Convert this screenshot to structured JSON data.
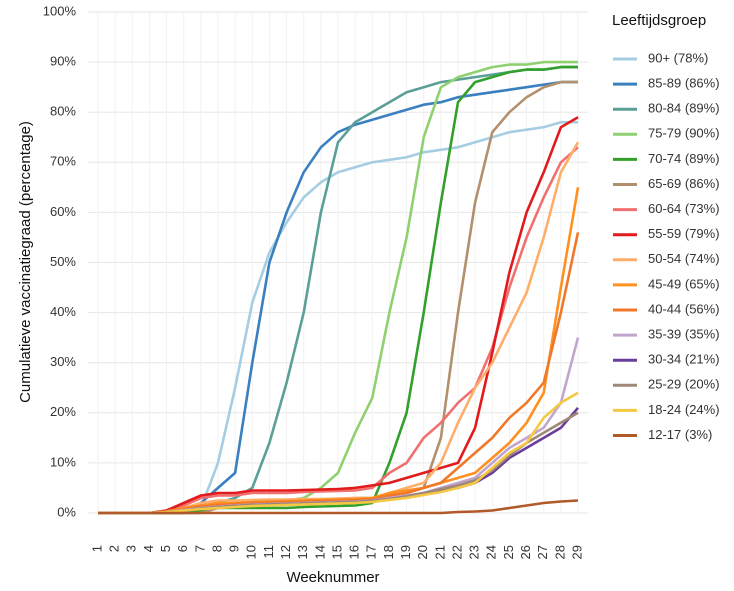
{
  "chart_data": {
    "type": "line",
    "x_label": "Weeknummer",
    "y_label": "Cumulatieve vaccinatiegraad (percentage)",
    "legend_title": "Leeftijdsgroep",
    "legend": "right",
    "grid": true,
    "categories": [
      "1",
      "2",
      "3",
      "4",
      "5",
      "6",
      "7",
      "8",
      "9",
      "10",
      "11",
      "12",
      "13",
      "14",
      "15",
      "16",
      "17",
      "18",
      "19",
      "20",
      "21",
      "22",
      "23",
      "24",
      "25",
      "26",
      "27",
      "28",
      "29"
    ],
    "ylim": [
      0,
      100
    ],
    "yticks": [
      {
        "value": 0,
        "label": "0%"
      },
      {
        "value": 10,
        "label": "10%"
      },
      {
        "value": 20,
        "label": "20%"
      },
      {
        "value": 30,
        "label": "30%"
      },
      {
        "value": 40,
        "label": "40%"
      },
      {
        "value": 50,
        "label": "50%"
      },
      {
        "value": 60,
        "label": "60%"
      },
      {
        "value": 70,
        "label": "70%"
      },
      {
        "value": 80,
        "label": "80%"
      },
      {
        "value": 90,
        "label": "90%"
      },
      {
        "value": 100,
        "label": "100%"
      }
    ],
    "series": [
      {
        "name": "90+ (78%)",
        "color": "#a6cee3",
        "values": [
          0,
          0,
          0,
          0,
          0,
          0,
          1,
          10,
          25,
          42,
          52,
          58,
          63,
          66,
          68,
          69,
          70,
          70.5,
          71,
          72,
          72.5,
          73,
          74,
          75,
          76,
          76.5,
          77,
          78,
          78
        ]
      },
      {
        "name": "85-89 (86%)",
        "color": "#3a7fbf",
        "values": [
          0,
          0,
          0,
          0,
          0,
          0,
          2,
          5,
          8,
          30,
          50,
          60,
          68,
          73,
          76,
          77.5,
          78.5,
          79.5,
          80.5,
          81.5,
          82,
          83,
          83.5,
          84,
          84.5,
          85,
          85.5,
          86,
          86
        ]
      },
      {
        "name": "80-84 (89%)",
        "color": "#5aa096",
        "values": [
          0,
          0,
          0,
          0,
          0,
          0,
          1,
          2,
          3,
          5,
          14,
          26,
          40,
          60,
          74,
          78,
          80,
          82,
          84,
          85,
          86,
          86.5,
          87,
          87.5,
          88,
          88.5,
          88.5,
          89,
          89
        ]
      },
      {
        "name": "75-79 (90%)",
        "color": "#8fd170",
        "values": [
          0,
          0,
          0,
          0,
          0,
          0,
          0.5,
          1,
          1.5,
          2,
          2.5,
          2.5,
          3,
          5,
          8,
          16,
          23,
          40,
          55,
          75,
          85,
          87,
          88,
          89,
          89.5,
          89.5,
          90,
          90,
          90
        ]
      },
      {
        "name": "70-74 (89%)",
        "color": "#33a02c",
        "values": [
          0,
          0,
          0,
          0,
          0,
          0,
          0.5,
          1,
          1,
          1,
          1,
          1,
          1.2,
          1.3,
          1.4,
          1.5,
          2,
          10,
          20,
          40,
          62,
          82,
          86,
          87,
          88,
          88.5,
          88.5,
          89,
          89
        ]
      },
      {
        "name": "65-69 (86%)",
        "color": "#b3906d",
        "values": [
          0,
          0,
          0,
          0,
          0,
          0,
          0,
          1,
          1.5,
          2,
          2,
          2.2,
          2.4,
          2.6,
          2.8,
          3,
          3,
          3.5,
          4,
          5,
          15,
          40,
          62,
          76,
          80,
          83,
          85,
          86,
          86
        ]
      },
      {
        "name": "60-64 (73%)",
        "color": "#f07070",
        "values": [
          0,
          0,
          0,
          0,
          0.5,
          1.5,
          3,
          3.5,
          3.5,
          4,
          4,
          4,
          4.2,
          4.3,
          4.4,
          4.5,
          5,
          8,
          10,
          15,
          18,
          22,
          25,
          33,
          45,
          55,
          63,
          70,
          73
        ]
      },
      {
        "name": "55-59 (79%)",
        "color": "#e31a1c",
        "values": [
          0,
          0,
          0,
          0,
          0.5,
          2,
          3.5,
          4,
          4,
          4.5,
          4.5,
          4.5,
          4.6,
          4.7,
          4.8,
          5,
          5.5,
          6,
          7,
          8,
          9,
          10,
          17,
          32,
          48,
          60,
          68,
          77,
          79
        ]
      },
      {
        "name": "50-54 (74%)",
        "color": "#fdae6b",
        "values": [
          0,
          0,
          0,
          0,
          0.3,
          1,
          2,
          2.5,
          2.5,
          2.6,
          2.7,
          2.7,
          2.8,
          2.8,
          2.9,
          3,
          3,
          4,
          5,
          6,
          10,
          18,
          25,
          30,
          37,
          44,
          55,
          68,
          74
        ]
      },
      {
        "name": "45-49 (65%)",
        "color": "#ff9020",
        "values": [
          0,
          0,
          0,
          0,
          0.3,
          1,
          1.5,
          2,
          2,
          2.2,
          2.3,
          2.4,
          2.5,
          2.6,
          2.7,
          2.8,
          3,
          4,
          4.5,
          5,
          6,
          7,
          8,
          11,
          14,
          18,
          24,
          45,
          65
        ]
      },
      {
        "name": "40-44 (56%)",
        "color": "#f07828",
        "values": [
          0,
          0,
          0,
          0,
          0.2,
          0.8,
          1.3,
          1.6,
          1.8,
          2,
          2.1,
          2.2,
          2.3,
          2.4,
          2.5,
          2.6,
          2.8,
          3.5,
          4,
          5,
          6,
          9,
          12,
          15,
          19,
          22,
          26,
          40,
          56
        ]
      },
      {
        "name": "35-39 (35%)",
        "color": "#c2a5cf",
        "values": [
          0,
          0,
          0,
          0,
          0.2,
          0.6,
          1,
          1.3,
          1.5,
          1.7,
          1.8,
          1.9,
          2,
          2.1,
          2.2,
          2.3,
          2.5,
          3,
          3.5,
          4,
          5,
          6,
          7,
          10,
          13,
          15,
          17,
          22,
          35
        ]
      },
      {
        "name": "30-34 (21%)",
        "color": "#6a3d9a",
        "values": [
          0,
          0,
          0,
          0,
          0.2,
          0.5,
          0.9,
          1.2,
          1.4,
          1.6,
          1.7,
          1.8,
          1.9,
          2,
          2.1,
          2.2,
          2.4,
          2.8,
          3.3,
          4,
          4.5,
          5,
          6,
          8,
          11,
          13,
          15,
          17,
          21
        ]
      },
      {
        "name": "25-29 (20%)",
        "color": "#a08878",
        "values": [
          0,
          0,
          0,
          0,
          0.2,
          0.5,
          0.9,
          1.2,
          1.4,
          1.6,
          1.7,
          1.8,
          1.9,
          2,
          2.1,
          2.2,
          2.4,
          2.8,
          3.3,
          4,
          4.8,
          5.5,
          6.5,
          8.5,
          11.5,
          14,
          16,
          18,
          20
        ]
      },
      {
        "name": "18-24 (24%)",
        "color": "#f5c842",
        "values": [
          0,
          0,
          0,
          0,
          0.2,
          0.5,
          0.8,
          1,
          1.2,
          1.4,
          1.5,
          1.6,
          1.7,
          1.8,
          1.9,
          2,
          2.2,
          2.6,
          3,
          3.6,
          4.2,
          5,
          6,
          9,
          12,
          14,
          19,
          22,
          24
        ]
      },
      {
        "name": "12-17 (3%)",
        "color": "#b15928",
        "values": [
          0,
          0,
          0,
          0,
          0,
          0,
          0,
          0,
          0,
          0,
          0,
          0,
          0,
          0,
          0,
          0,
          0,
          0,
          0,
          0,
          0,
          0.2,
          0.3,
          0.5,
          1,
          1.5,
          2,
          2.3,
          2.5
        ]
      }
    ]
  }
}
